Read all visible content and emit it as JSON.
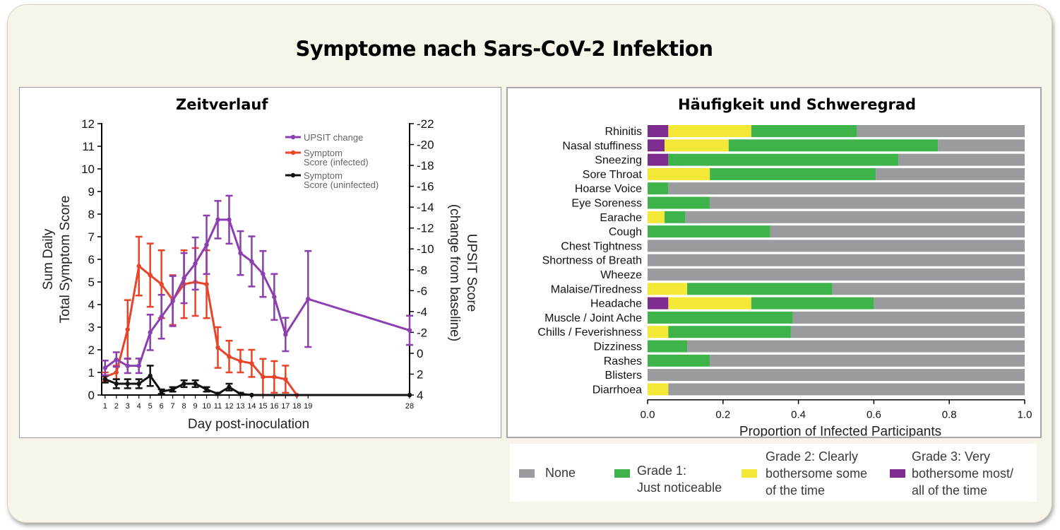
{
  "title": "Symptome nach Sars-CoV-2 Infektion",
  "left_title": "Zeitverlauf",
  "right_title": "Häufigkeit und Schweregrad",
  "colors": {
    "upsit": "#8b3fb0",
    "infected": "#e8442a",
    "uninfected": "#111111",
    "none": "#999b9e",
    "grade1": "#3db34a",
    "grade2": "#f4e836",
    "grade3": "#7f2c91"
  },
  "chart_data": [
    {
      "type": "line",
      "xlabel": "Day post-inoculation",
      "ylabel": [
        "Sum Daily",
        "Total Symptom Score"
      ],
      "y2label": [
        "UPSIT Score",
        "(change from baseline)"
      ],
      "x_ticks": [
        "1",
        "2",
        "3",
        "4",
        "5",
        "6",
        "7",
        "8",
        "9",
        "10",
        "11",
        "12",
        "13",
        "14",
        "15",
        "16",
        "17",
        "18",
        "19",
        "28"
      ],
      "x_tick_days": [
        1,
        2,
        3,
        4,
        5,
        6,
        7,
        8,
        9,
        10,
        11,
        12,
        13,
        14,
        15,
        16,
        17,
        18,
        19,
        28
      ],
      "ylim": [
        0,
        12
      ],
      "y_ticks": [
        "0",
        "1",
        "2",
        "3",
        "4",
        "5",
        "6",
        "7",
        "8",
        "9",
        "10",
        "11",
        "12"
      ],
      "y2lim": [
        4,
        -22
      ],
      "y2_ticks": [
        "4",
        "2",
        "0",
        "-2",
        "-4",
        "-6",
        "-8",
        "-10",
        "-12",
        "-14",
        "-16",
        "-18",
        "-20",
        "-22"
      ],
      "series": [
        {
          "name": "UPSIT change",
          "axis": "right",
          "color": "#8b3fb0",
          "x": [
            1,
            2,
            3,
            4,
            5,
            6,
            7,
            8,
            9,
            10,
            11,
            12,
            13,
            14,
            15,
            16,
            17,
            19,
            28
          ],
          "y": [
            1.4,
            0.6,
            1.2,
            1.2,
            -2.0,
            -3.5,
            -5.0,
            -7.2,
            -8.6,
            -10.4,
            -12.8,
            -12.8,
            -9.6,
            -8.8,
            -7.6,
            -5.4,
            -1.8,
            -5.2,
            -2.2
          ],
          "err": [
            0.7,
            0.7,
            0.7,
            0.7,
            1.7,
            2.1,
            2.4,
            2.4,
            2.5,
            2.8,
            1.8,
            2.3,
            2.1,
            2.4,
            2.2,
            2.2,
            1.6,
            4.6,
            1.4
          ]
        },
        {
          "name": "Symptom Score (infected)",
          "axis": "left",
          "color": "#e8442a",
          "x": [
            1,
            2,
            3,
            4,
            5,
            6,
            7,
            8,
            9,
            10,
            11,
            12,
            13,
            14,
            15,
            16,
            17,
            18,
            28
          ],
          "y": [
            0.8,
            1.0,
            2.9,
            5.7,
            5.3,
            4.9,
            4.2,
            4.9,
            5.0,
            4.9,
            2.1,
            1.7,
            1.5,
            1.4,
            0.8,
            0.8,
            0.7,
            0,
            0
          ],
          "err": [
            0.2,
            0.3,
            1.3,
            1.3,
            1.4,
            1.5,
            1.1,
            1.5,
            1.5,
            1.5,
            0.9,
            0.7,
            0.5,
            0.6,
            0.8,
            0.7,
            0.6,
            0,
            0
          ]
        },
        {
          "name": "Symptom Score (uninfected)",
          "axis": "left",
          "color": "#111111",
          "x": [
            1,
            2,
            3,
            4,
            5,
            6,
            7,
            8,
            9,
            10,
            11,
            12,
            13,
            14,
            28
          ],
          "y": [
            0.7,
            0.5,
            0.5,
            0.5,
            0.85,
            0.15,
            0.25,
            0.5,
            0.5,
            0.25,
            0.05,
            0.35,
            0.05,
            0,
            0
          ],
          "err": [
            0.15,
            0.2,
            0.2,
            0.2,
            0.45,
            0.1,
            0.1,
            0.15,
            0.15,
            0.1,
            0.05,
            0.15,
            0.05,
            0,
            0
          ]
        }
      ],
      "legend": [
        "UPSIT change",
        [
          "Symptom",
          "Score (infected)"
        ],
        [
          "Symptom",
          "Score (uninfected)"
        ]
      ]
    },
    {
      "type": "bar",
      "orientation": "horizontal-stacked",
      "xlabel": "Proportion of Infected Participants",
      "xlim": [
        0,
        1
      ],
      "x_ticks": [
        "0.0",
        "0.2",
        "0.4",
        "0.6",
        "0.8",
        "1.0"
      ],
      "categories": [
        "Rhinitis",
        "Nasal stuffiness",
        "Sneezing",
        "Sore Throat",
        "Hoarse Voice",
        "Eye Soreness",
        "Earache",
        "Cough",
        "Chest Tightness",
        "Shortness of Breath",
        "Wheeze",
        "Malaise/Tiredness",
        "Headache",
        "Muscle / Joint Ache",
        "Chills / Feverishness",
        "Dizziness",
        "Rashes",
        "Blisters",
        "Diarrhoea"
      ],
      "series": [
        {
          "name": "Grade 3: Very bothersome most/ all of the time",
          "values": [
            0.055,
            0.045,
            0.055,
            0,
            0,
            0,
            0,
            0,
            0,
            0,
            0,
            0,
            0.055,
            0,
            0,
            0,
            0,
            0,
            0
          ]
        },
        {
          "name": "Grade 2: Clearly bothersome some of the time",
          "values": [
            0.22,
            0.17,
            0,
            0.165,
            0,
            0,
            0.045,
            0,
            0,
            0,
            0,
            0.105,
            0.22,
            0,
            0.055,
            0,
            0,
            0,
            0.055
          ]
        },
        {
          "name": "Grade 1: Just noticeable",
          "values": [
            0.28,
            0.555,
            0.61,
            0.44,
            0.055,
            0.165,
            0.055,
            0.325,
            0,
            0,
            0,
            0.385,
            0.325,
            0.385,
            0.325,
            0.105,
            0.165,
            0,
            0
          ]
        },
        {
          "name": "None",
          "values": [
            0.445,
            0.23,
            0.335,
            0.395,
            0.945,
            0.835,
            0.9,
            0.675,
            1,
            1,
            1,
            0.51,
            0.4,
            0.615,
            0.62,
            0.895,
            0.835,
            1,
            0.945
          ]
        }
      ],
      "legend": [
        "None",
        [
          "Grade 1:",
          "Just noticeable"
        ],
        [
          "Grade 2: Clearly",
          "bothersome some",
          "of the time"
        ],
        [
          "Grade 3: Very",
          "bothersome most/",
          "all of the time"
        ]
      ]
    }
  ]
}
